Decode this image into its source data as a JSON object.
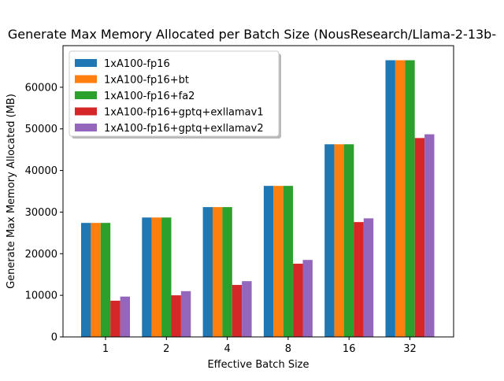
{
  "chart_data": {
    "type": "bar",
    "title": "Generate Max Memory Allocated per Batch Size (NousResearch/Llama-2-13b-",
    "xlabel": "Effective Batch Size",
    "ylabel": "Generate Max Memory Allocated (MB)",
    "categories": [
      "1",
      "2",
      "4",
      "8",
      "16",
      "32"
    ],
    "ylim": [
      0,
      70000
    ],
    "yticks": [
      0,
      10000,
      20000,
      30000,
      40000,
      50000,
      60000
    ],
    "legend_position": "top-left",
    "grid": false,
    "series": [
      {
        "name": "1xA100-fp16",
        "color": "#1f77b4",
        "values": [
          27400,
          28700,
          31200,
          36300,
          46300,
          66500
        ]
      },
      {
        "name": "1xA100-fp16+bt",
        "color": "#ff7f0e",
        "values": [
          27400,
          28700,
          31200,
          36300,
          46300,
          66500
        ]
      },
      {
        "name": "1xA100-fp16+fa2",
        "color": "#2ca02c",
        "values": [
          27400,
          28700,
          31200,
          36300,
          46300,
          66500
        ]
      },
      {
        "name": "1xA100-fp16+gptq+exllamav1",
        "color": "#d62728",
        "values": [
          8700,
          10000,
          12500,
          17600,
          27600,
          47800
        ]
      },
      {
        "name": "1xA100-fp16+gptq+exllamav2",
        "color": "#9467bd",
        "values": [
          9700,
          11000,
          13400,
          18500,
          28500,
          48700
        ]
      }
    ]
  }
}
